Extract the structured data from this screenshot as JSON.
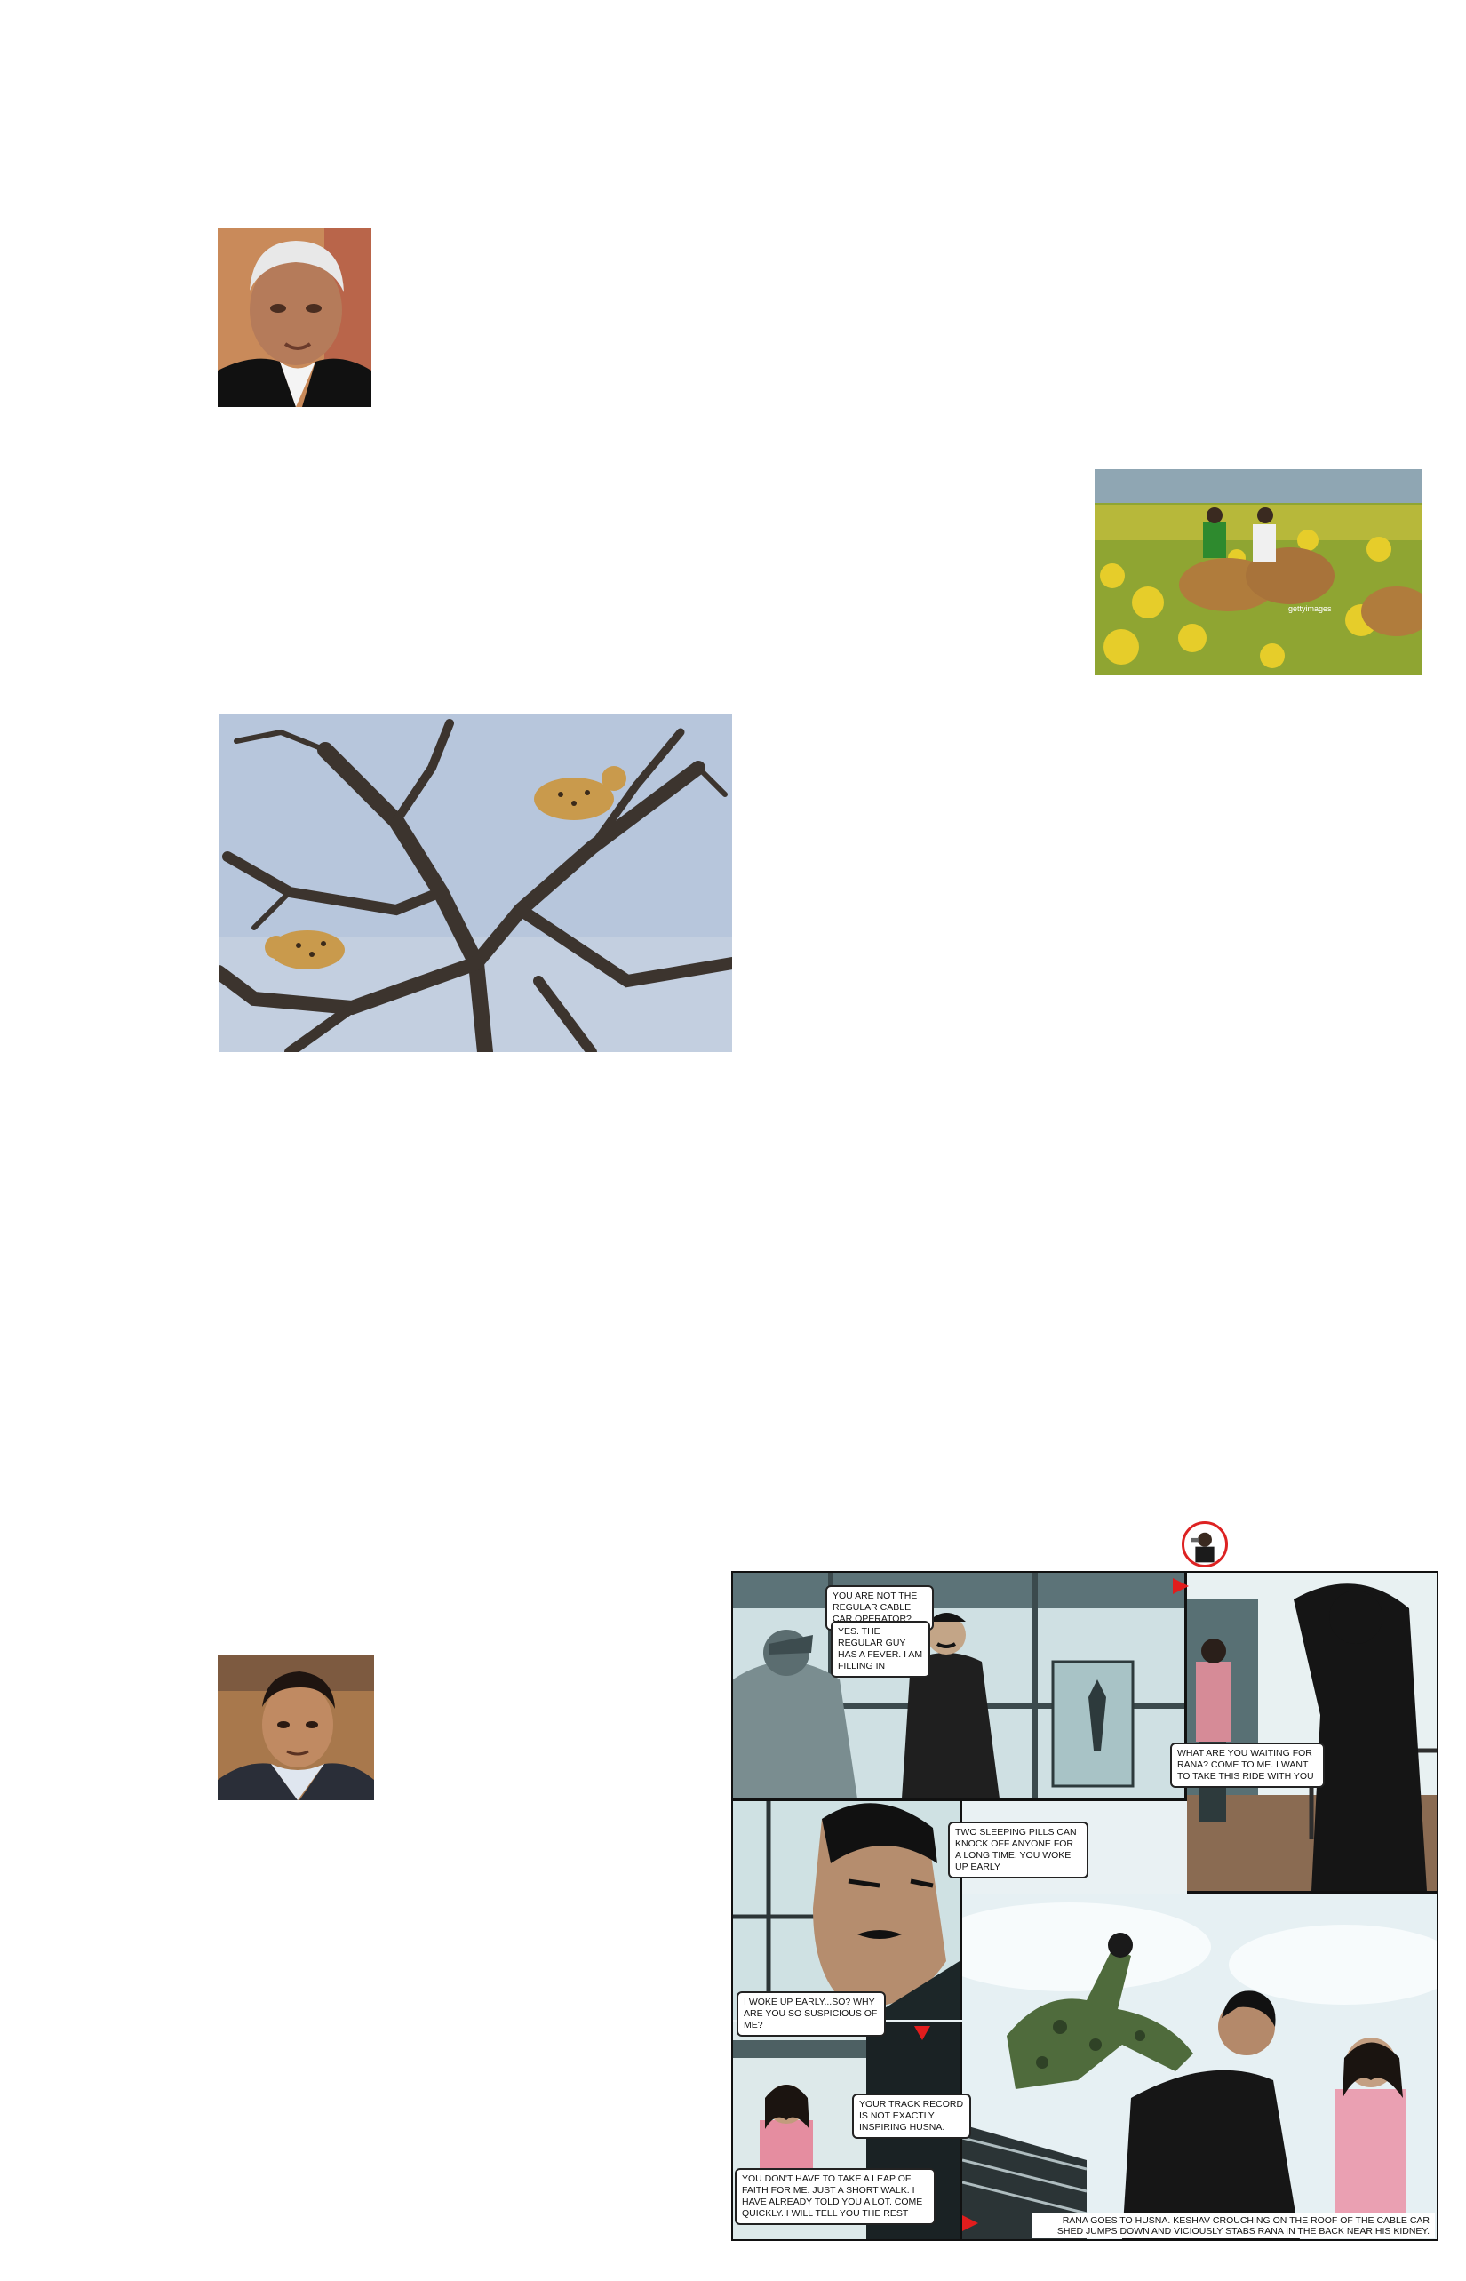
{
  "photos": {
    "politician_portrait": {
      "icon": "portrait-photo"
    },
    "field_workers": {
      "icon": "farm-field-photo",
      "watermark": "gettyimages"
    },
    "leopards_tree": {
      "icon": "leopards-in-tree-photo"
    },
    "second_portrait": {
      "icon": "portrait-photo"
    }
  },
  "comic": {
    "logo_icon": "hero-badge-icon",
    "bubbles": {
      "not_regular": "YOU ARE NOT THE REGULAR CABLE CAR OPERATOR?",
      "regular_fever": "YES. THE REGULAR GUY HAS A FEVER. I AM FILLING IN",
      "waiting_for_rana": "WHAT ARE YOU WAITING FOR RANA? COME TO ME. I WANT TO TAKE THIS RIDE WITH YOU",
      "sleeping_pills": "TWO SLEEPING PILLS CAN KNOCK OFF ANYONE FOR A LONG TIME. YOU WOKE UP EARLY",
      "woke_up_early": "I WOKE UP EARLY...SO? WHY ARE YOU SO SUSPICIOUS OF ME?",
      "track_record": "YOUR TRACK RECORD IS NOT EXACTLY INSPIRING HUSNA.",
      "leap_of_faith": "YOU DON'T HAVE TO TAKE A LEAP OF FAITH FOR ME. JUST A SHORT WALK. I HAVE ALREADY TOLD YOU A LOT. COME QUICKLY. I WILL TELL YOU THE REST"
    },
    "caption": "RANA GOES TO HUSNA. KESHAV CROUCHING ON THE ROOF OF THE CABLE CAR SHED JUMPS DOWN AND VICIOUSLY STABS RANA IN THE BACK NEAR HIS KIDNEY.",
    "accent_color": "#e21d1d"
  }
}
